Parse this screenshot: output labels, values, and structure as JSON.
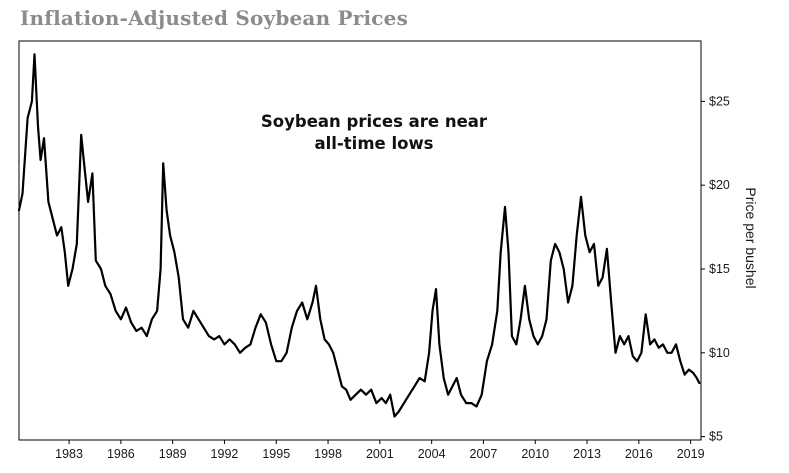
{
  "chart_data": {
    "type": "line",
    "title": "Inflation-Adjusted Soybean Prices",
    "xlabel": "",
    "ylabel": "Price per bushel",
    "annotation": [
      "Soybean prices are near",
      "all-time lows"
    ],
    "x_ticks": [
      "1983",
      "1986",
      "1989",
      "1992",
      "1995",
      "1998",
      "2001",
      "2004",
      "2007",
      "2010",
      "2013",
      "2016",
      "2019"
    ],
    "y_ticks": [
      "$5",
      "$10",
      "$15",
      "$20",
      "$25"
    ],
    "xlim": [
      1980.1,
      2019.6
    ],
    "ylim": [
      4.8,
      28.6
    ],
    "grid": false,
    "series": [
      {
        "values": [
          [
            1980.1,
            18.5
          ],
          [
            1980.3,
            19.5
          ],
          [
            1980.6,
            24.0
          ],
          [
            1980.85,
            25.0
          ],
          [
            1981.0,
            27.8
          ],
          [
            1981.2,
            23.5
          ],
          [
            1981.35,
            21.5
          ],
          [
            1981.55,
            22.8
          ],
          [
            1981.8,
            19.0
          ],
          [
            1982.05,
            18.0
          ],
          [
            1982.3,
            17.0
          ],
          [
            1982.55,
            17.5
          ],
          [
            1982.75,
            16.0
          ],
          [
            1982.95,
            14.0
          ],
          [
            1983.2,
            15.0
          ],
          [
            1983.45,
            16.5
          ],
          [
            1983.7,
            23.0
          ],
          [
            1983.9,
            21.0
          ],
          [
            1984.1,
            19.0
          ],
          [
            1984.35,
            20.7
          ],
          [
            1984.55,
            15.5
          ],
          [
            1984.85,
            15.0
          ],
          [
            1985.1,
            14.0
          ],
          [
            1985.4,
            13.5
          ],
          [
            1985.7,
            12.5
          ],
          [
            1986.0,
            12.0
          ],
          [
            1986.3,
            12.7
          ],
          [
            1986.6,
            11.8
          ],
          [
            1986.9,
            11.3
          ],
          [
            1987.2,
            11.5
          ],
          [
            1987.5,
            11.0
          ],
          [
            1987.8,
            12.0
          ],
          [
            1988.1,
            12.5
          ],
          [
            1988.3,
            15.0
          ],
          [
            1988.45,
            21.3
          ],
          [
            1988.65,
            18.5
          ],
          [
            1988.85,
            17.0
          ],
          [
            1989.1,
            16.0
          ],
          [
            1989.35,
            14.5
          ],
          [
            1989.6,
            12.0
          ],
          [
            1989.9,
            11.5
          ],
          [
            1990.2,
            12.5
          ],
          [
            1990.5,
            12.0
          ],
          [
            1990.8,
            11.5
          ],
          [
            1991.1,
            11.0
          ],
          [
            1991.4,
            10.8
          ],
          [
            1991.7,
            11.0
          ],
          [
            1992.0,
            10.5
          ],
          [
            1992.3,
            10.8
          ],
          [
            1992.6,
            10.5
          ],
          [
            1992.9,
            10.0
          ],
          [
            1993.2,
            10.3
          ],
          [
            1993.5,
            10.5
          ],
          [
            1993.8,
            11.5
          ],
          [
            1994.1,
            12.3
          ],
          [
            1994.4,
            11.8
          ],
          [
            1994.7,
            10.5
          ],
          [
            1995.0,
            9.5
          ],
          [
            1995.3,
            9.5
          ],
          [
            1995.6,
            10.0
          ],
          [
            1995.9,
            11.5
          ],
          [
            1996.2,
            12.5
          ],
          [
            1996.5,
            13.0
          ],
          [
            1996.8,
            12.0
          ],
          [
            1997.1,
            13.0
          ],
          [
            1997.3,
            14.0
          ],
          [
            1997.55,
            12.0
          ],
          [
            1997.8,
            10.8
          ],
          [
            1998.05,
            10.5
          ],
          [
            1998.3,
            10.0
          ],
          [
            1998.55,
            9.0
          ],
          [
            1998.8,
            8.0
          ],
          [
            1999.05,
            7.8
          ],
          [
            1999.3,
            7.2
          ],
          [
            1999.6,
            7.5
          ],
          [
            1999.9,
            7.8
          ],
          [
            2000.2,
            7.5
          ],
          [
            2000.5,
            7.8
          ],
          [
            2000.8,
            7.0
          ],
          [
            2001.1,
            7.3
          ],
          [
            2001.35,
            7.0
          ],
          [
            2001.6,
            7.5
          ],
          [
            2001.85,
            6.2
          ],
          [
            2002.1,
            6.5
          ],
          [
            2002.4,
            7.0
          ],
          [
            2002.7,
            7.5
          ],
          [
            2003.0,
            8.0
          ],
          [
            2003.3,
            8.5
          ],
          [
            2003.6,
            8.3
          ],
          [
            2003.85,
            10.0
          ],
          [
            2004.05,
            12.5
          ],
          [
            2004.25,
            13.8
          ],
          [
            2004.45,
            10.5
          ],
          [
            2004.7,
            8.5
          ],
          [
            2004.95,
            7.5
          ],
          [
            2005.2,
            8.0
          ],
          [
            2005.45,
            8.5
          ],
          [
            2005.7,
            7.5
          ],
          [
            2006.0,
            7.0
          ],
          [
            2006.3,
            7.0
          ],
          [
            2006.6,
            6.8
          ],
          [
            2006.9,
            7.5
          ],
          [
            2007.2,
            9.5
          ],
          [
            2007.5,
            10.5
          ],
          [
            2007.8,
            12.5
          ],
          [
            2008.0,
            16.0
          ],
          [
            2008.25,
            18.7
          ],
          [
            2008.45,
            16.0
          ],
          [
            2008.65,
            11.0
          ],
          [
            2008.9,
            10.5
          ],
          [
            2009.15,
            12.0
          ],
          [
            2009.4,
            14.0
          ],
          [
            2009.65,
            12.0
          ],
          [
            2009.9,
            11.0
          ],
          [
            2010.15,
            10.5
          ],
          [
            2010.4,
            11.0
          ],
          [
            2010.65,
            12.0
          ],
          [
            2010.9,
            15.5
          ],
          [
            2011.15,
            16.5
          ],
          [
            2011.4,
            16.0
          ],
          [
            2011.65,
            15.0
          ],
          [
            2011.9,
            13.0
          ],
          [
            2012.15,
            14.0
          ],
          [
            2012.4,
            17.0
          ],
          [
            2012.65,
            19.3
          ],
          [
            2012.9,
            17.0
          ],
          [
            2013.15,
            16.0
          ],
          [
            2013.4,
            16.5
          ],
          [
            2013.65,
            14.0
          ],
          [
            2013.9,
            14.5
          ],
          [
            2014.15,
            16.2
          ],
          [
            2014.4,
            13.0
          ],
          [
            2014.65,
            10.0
          ],
          [
            2014.9,
            11.0
          ],
          [
            2015.15,
            10.5
          ],
          [
            2015.4,
            11.0
          ],
          [
            2015.65,
            9.8
          ],
          [
            2015.9,
            9.5
          ],
          [
            2016.15,
            10.0
          ],
          [
            2016.4,
            12.3
          ],
          [
            2016.65,
            10.5
          ],
          [
            2016.9,
            10.8
          ],
          [
            2017.15,
            10.3
          ],
          [
            2017.4,
            10.5
          ],
          [
            2017.65,
            10.0
          ],
          [
            2017.9,
            10.0
          ],
          [
            2018.15,
            10.5
          ],
          [
            2018.4,
            9.5
          ],
          [
            2018.65,
            8.7
          ],
          [
            2018.9,
            9.0
          ],
          [
            2019.15,
            8.8
          ],
          [
            2019.35,
            8.5
          ],
          [
            2019.5,
            8.2
          ]
        ]
      }
    ],
    "line_color": "#000000"
  }
}
